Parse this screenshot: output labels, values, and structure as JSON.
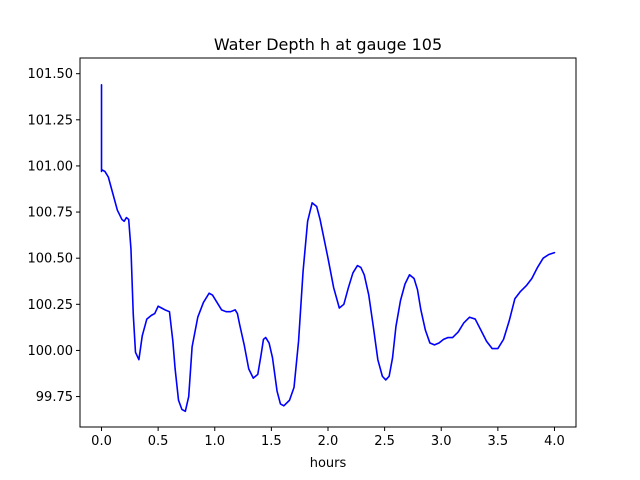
{
  "chart_data": {
    "type": "line",
    "title": "Water Depth h at gauge 105",
    "xlabel": "hours",
    "ylabel": "",
    "xlim": [
      -0.19,
      4.19
    ],
    "ylim": [
      99.585,
      101.585
    ],
    "grid": false,
    "x_ticks": [
      0.0,
      0.5,
      1.0,
      1.5,
      2.0,
      2.5,
      3.0,
      3.5,
      4.0
    ],
    "x_tick_labels": [
      "0.0",
      "0.5",
      "1.0",
      "1.5",
      "2.0",
      "2.5",
      "3.0",
      "3.5",
      "4.0"
    ],
    "y_ticks": [
      99.75,
      100.0,
      100.25,
      100.5,
      100.75,
      101.0,
      101.25,
      101.5
    ],
    "y_tick_labels": [
      "99.75",
      "100.00",
      "100.25",
      "100.50",
      "100.75",
      "101.00",
      "101.25",
      "101.50"
    ],
    "series": [
      {
        "color": "#0000ff",
        "x": [
          0.0,
          0.0,
          0.0,
          0.03,
          0.06,
          0.1,
          0.14,
          0.18,
          0.2,
          0.22,
          0.24,
          0.26,
          0.28,
          0.3,
          0.33,
          0.36,
          0.4,
          0.44,
          0.47,
          0.5,
          0.53,
          0.56,
          0.6,
          0.63,
          0.65,
          0.68,
          0.71,
          0.74,
          0.77,
          0.8,
          0.85,
          0.9,
          0.95,
          0.98,
          1.02,
          1.06,
          1.1,
          1.14,
          1.18,
          1.2,
          1.22,
          1.26,
          1.3,
          1.34,
          1.38,
          1.41,
          1.43,
          1.45,
          1.48,
          1.51,
          1.55,
          1.58,
          1.61,
          1.66,
          1.7,
          1.74,
          1.78,
          1.82,
          1.86,
          1.9,
          1.93,
          1.96,
          2.0,
          2.05,
          2.1,
          2.14,
          2.18,
          2.22,
          2.26,
          2.29,
          2.32,
          2.36,
          2.4,
          2.44,
          2.48,
          2.51,
          2.54,
          2.57,
          2.6,
          2.64,
          2.68,
          2.72,
          2.76,
          2.79,
          2.82,
          2.86,
          2.9,
          2.94,
          2.98,
          3.02,
          3.06,
          3.1,
          3.15,
          3.2,
          3.25,
          3.3,
          3.35,
          3.4,
          3.45,
          3.5,
          3.55,
          3.6,
          3.65,
          3.7,
          3.75,
          3.8,
          3.85,
          3.9,
          3.95,
          4.0
        ],
        "y": [
          101.44,
          100.97,
          100.98,
          100.97,
          100.94,
          100.85,
          100.76,
          100.71,
          100.7,
          100.72,
          100.71,
          100.55,
          100.2,
          99.99,
          99.95,
          100.08,
          100.17,
          100.19,
          100.2,
          100.24,
          100.23,
          100.22,
          100.21,
          100.05,
          99.9,
          99.73,
          99.68,
          99.67,
          99.75,
          100.02,
          100.18,
          100.26,
          100.31,
          100.3,
          100.26,
          100.22,
          100.21,
          100.21,
          100.22,
          100.2,
          100.14,
          100.03,
          99.9,
          99.85,
          99.87,
          99.98,
          100.06,
          100.07,
          100.04,
          99.96,
          99.78,
          99.71,
          99.7,
          99.73,
          99.8,
          100.05,
          100.43,
          100.7,
          100.8,
          100.78,
          100.71,
          100.62,
          100.5,
          100.34,
          100.23,
          100.25,
          100.34,
          100.42,
          100.46,
          100.45,
          100.41,
          100.3,
          100.13,
          99.95,
          99.86,
          99.84,
          99.86,
          99.96,
          100.13,
          100.27,
          100.36,
          100.41,
          100.39,
          100.33,
          100.22,
          100.11,
          100.04,
          100.03,
          100.04,
          100.06,
          100.07,
          100.07,
          100.1,
          100.15,
          100.18,
          100.17,
          100.11,
          100.05,
          100.01,
          100.01,
          100.06,
          100.16,
          100.28,
          100.32,
          100.35,
          100.39,
          100.45,
          100.5,
          100.52,
          100.53
        ]
      }
    ]
  }
}
